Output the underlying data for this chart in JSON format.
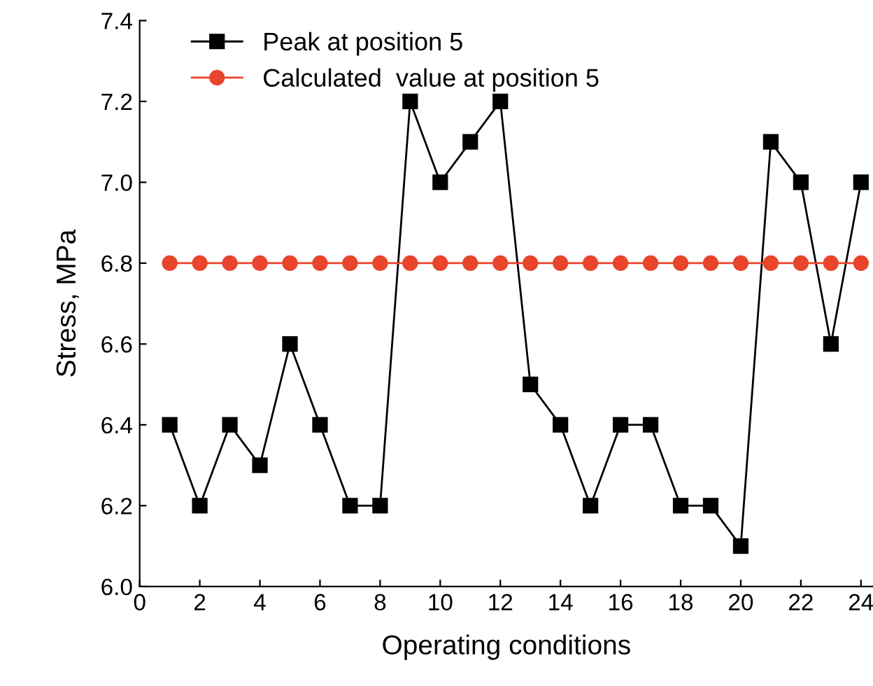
{
  "chart_data": {
    "type": "line",
    "xlabel": "Operating conditions",
    "ylabel": "Stress, MPa",
    "x": [
      1,
      2,
      3,
      4,
      5,
      6,
      7,
      8,
      9,
      10,
      11,
      12,
      13,
      14,
      15,
      16,
      17,
      18,
      19,
      20,
      21,
      22,
      23,
      24
    ],
    "series": [
      {
        "name": "Peak at position 5",
        "color": "#000000",
        "marker": "square",
        "values": [
          6.4,
          6.2,
          6.4,
          6.3,
          6.6,
          6.4,
          6.2,
          6.2,
          7.2,
          7.0,
          7.1,
          7.2,
          6.5,
          6.4,
          6.2,
          6.4,
          6.4,
          6.2,
          6.2,
          6.1,
          7.1,
          7.0,
          6.6,
          7.0
        ]
      },
      {
        "name": "Calculated  value at position 5",
        "color": "#e8452c",
        "marker": "circle",
        "values": [
          6.8,
          6.8,
          6.8,
          6.8,
          6.8,
          6.8,
          6.8,
          6.8,
          6.8,
          6.8,
          6.8,
          6.8,
          6.8,
          6.8,
          6.8,
          6.8,
          6.8,
          6.8,
          6.8,
          6.8,
          6.8,
          6.8,
          6.8,
          6.8
        ]
      }
    ],
    "xlim": [
      0,
      24.4
    ],
    "xticks": [
      0,
      2,
      4,
      6,
      8,
      10,
      12,
      14,
      16,
      18,
      20,
      22,
      24
    ],
    "ylim": [
      6.0,
      7.4
    ],
    "yticks": [
      {
        "value": 6.0,
        "label": "6.0"
      },
      6.2,
      6.4,
      6.6,
      6.8,
      {
        "value": 7.0,
        "label": "7.0"
      },
      7.2,
      7.4
    ],
    "grid": false,
    "legend": "top left",
    "line_style": "solid"
  }
}
